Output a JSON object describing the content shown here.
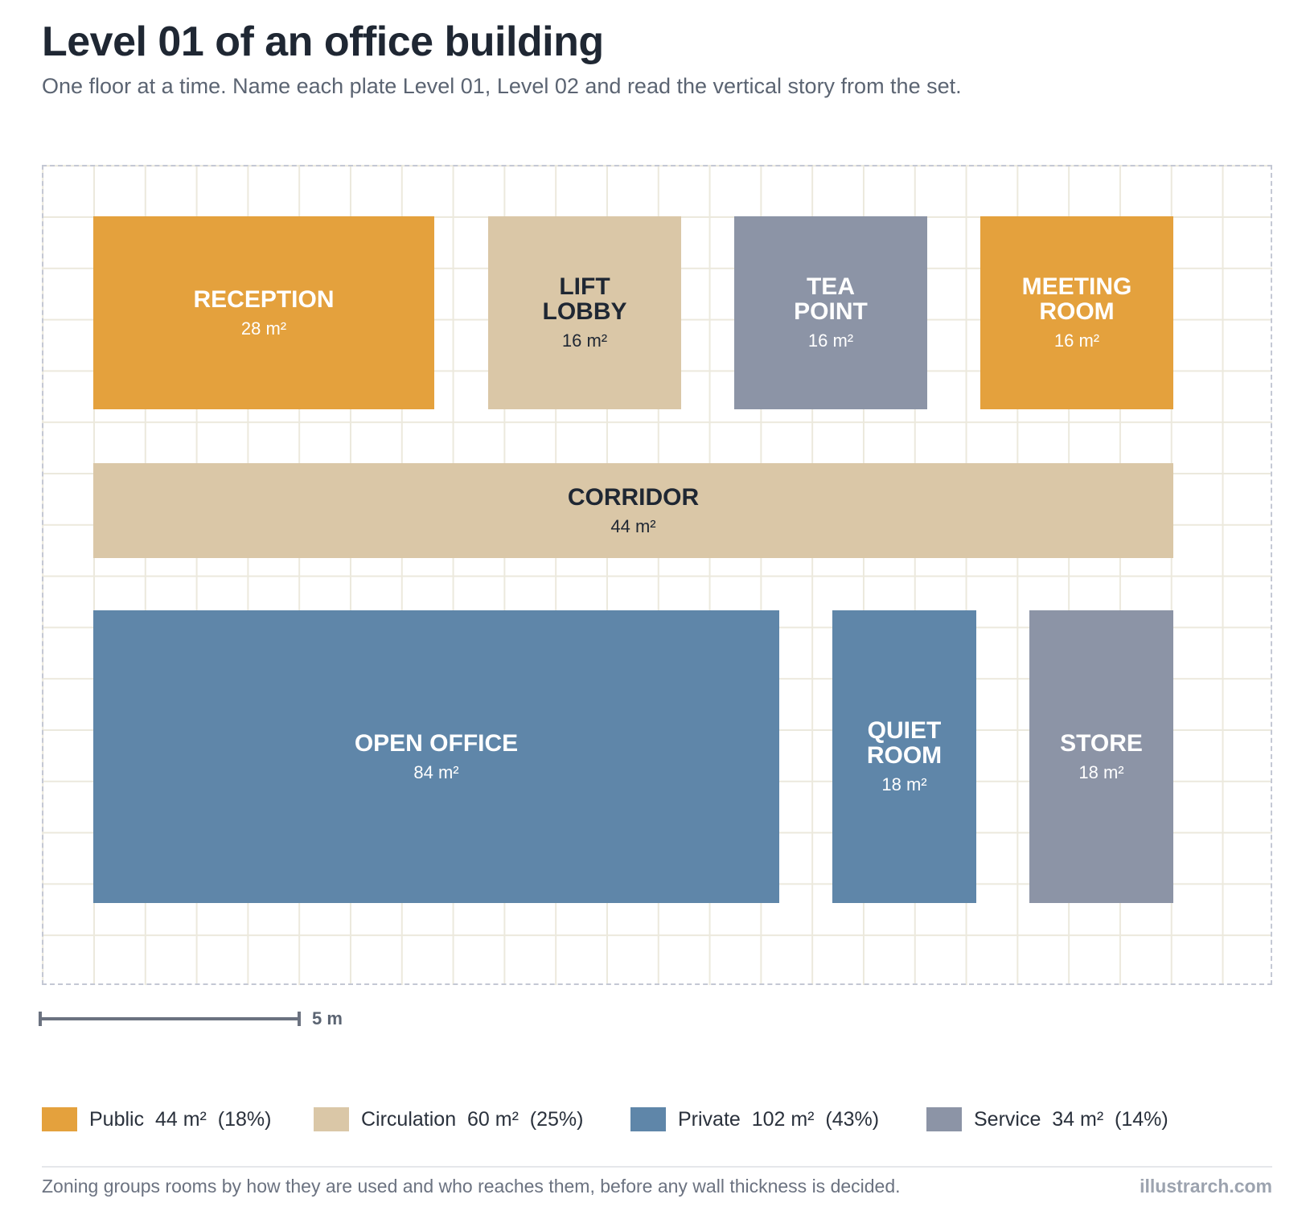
{
  "header": {
    "title": "Level 01 of an office building",
    "subtitle": "One floor at a time. Name each plate Level 01, Level 02 and read the vertical story from the set."
  },
  "colors": {
    "public": "#E4A13D",
    "circulation": "#DAC7A7",
    "private": "#5F86A9",
    "service": "#8C94A6"
  },
  "rooms": [
    {
      "name": "RECEPTION",
      "area": "28 m²",
      "zone": "public"
    },
    {
      "name": "LIFT\nLOBBY",
      "area": "16 m²",
      "zone": "circulation"
    },
    {
      "name": "TEA\nPOINT",
      "area": "16 m²",
      "zone": "service"
    },
    {
      "name": "MEETING\nROOM",
      "area": "16 m²",
      "zone": "public"
    },
    {
      "name": "CORRIDOR",
      "area": "44 m²",
      "zone": "circulation"
    },
    {
      "name": "OPEN OFFICE",
      "area": "84 m²",
      "zone": "private"
    },
    {
      "name": "QUIET\nROOM",
      "area": "18 m²",
      "zone": "private"
    },
    {
      "name": "STORE",
      "area": "18 m²",
      "zone": "service"
    }
  ],
  "scale": {
    "label": "5 m"
  },
  "legend": [
    {
      "zone": "public",
      "label": "Public  44 m²  (18%)"
    },
    {
      "zone": "circulation",
      "label": "Circulation  60 m²  (25%)"
    },
    {
      "zone": "private",
      "label": "Private  102 m²  (43%)"
    },
    {
      "zone": "service",
      "label": "Service  34 m²  (14%)"
    }
  ],
  "footer": {
    "note": "Zoning groups rooms by how they are used and who reaches them, before any wall thickness is decided.",
    "brand": "illustrarch.com"
  }
}
